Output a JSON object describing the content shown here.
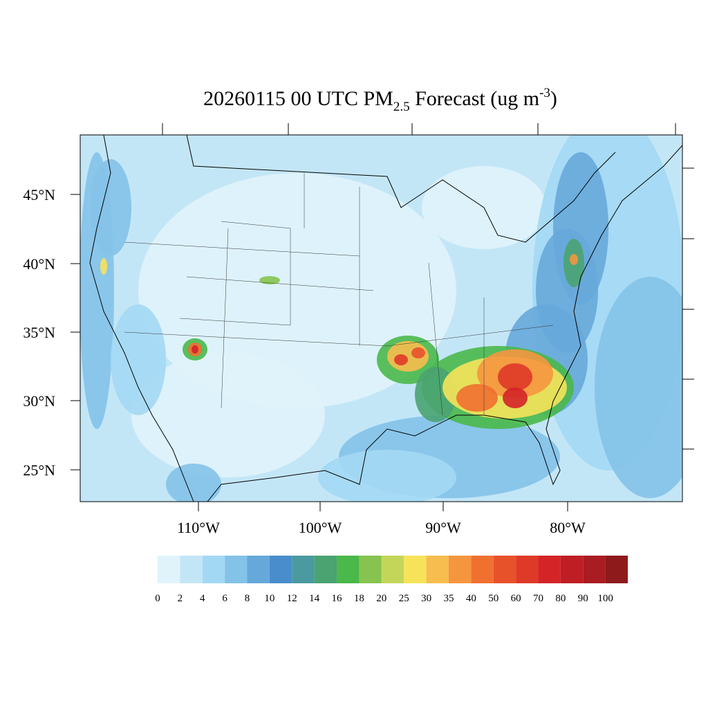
{
  "title": {
    "main": "20260115 00 UTC PM",
    "sub": "2.5",
    "middle": " Forecast (ug m",
    "sup": "-3",
    "end": ")"
  },
  "map": {
    "lat_labels": [
      "45°N",
      "40°N",
      "35°N",
      "30°N",
      "25°N"
    ],
    "lon_labels": [
      "110°W",
      "100°W",
      "90°W",
      "80°W"
    ]
  },
  "colorbar": {
    "levels": [
      0,
      2,
      4,
      6,
      8,
      10,
      12,
      14,
      16,
      18,
      20,
      25,
      30,
      35,
      40,
      50,
      60,
      70,
      80,
      90,
      100
    ],
    "colors": [
      "#e0f3fb",
      "#c3e6f7",
      "#a3d8f4",
      "#84c2e8",
      "#67a8da",
      "#4a8dcc",
      "#4a9aa0",
      "#4aa371",
      "#4ab84a",
      "#86c44f",
      "#c4d65a",
      "#f6e35a",
      "#f7bd4e",
      "#f5963f",
      "#f07030",
      "#e8522b",
      "#df3a28",
      "#d42428",
      "#bf1e24",
      "#a81c22",
      "#8e1a1c"
    ]
  }
}
